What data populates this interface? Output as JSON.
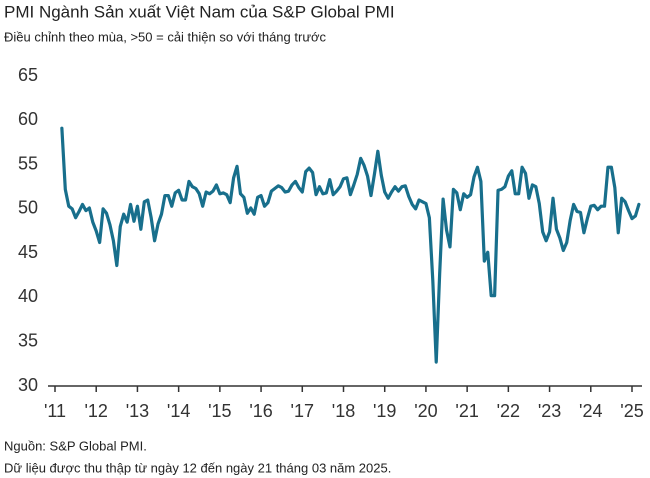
{
  "chart_data": {
    "type": "line",
    "title": "PMI Ngành Sản xuất Việt Nam của S&P Global PMI",
    "subtitle": "Điều chỉnh theo mùa, >50 = cải thiện so với tháng trước",
    "notes": [
      "Nguồn: S&P Global PMI.",
      "Dữ liệu được thu thập từ ngày 12 đến ngày 21 tháng 03 năm 2025."
    ],
    "color": "#186f8c",
    "ylim": [
      30,
      65
    ],
    "yticks": [
      30,
      35,
      40,
      45,
      50,
      55,
      60,
      65
    ],
    "grid": false,
    "categories": [
      "'11",
      null,
      null,
      null,
      null,
      null,
      null,
      null,
      null,
      null,
      null,
      null,
      "'12",
      null,
      null,
      null,
      null,
      null,
      null,
      null,
      null,
      null,
      null,
      null,
      "'13",
      null,
      null,
      null,
      null,
      null,
      null,
      null,
      null,
      null,
      null,
      null,
      "'14",
      null,
      null,
      null,
      null,
      null,
      null,
      null,
      null,
      null,
      null,
      null,
      "'15",
      null,
      null,
      null,
      null,
      null,
      null,
      null,
      null,
      null,
      null,
      null,
      "'16",
      null,
      null,
      null,
      null,
      null,
      null,
      null,
      null,
      null,
      null,
      null,
      "'17",
      null,
      null,
      null,
      null,
      null,
      null,
      null,
      null,
      null,
      null,
      null,
      "'18",
      null,
      null,
      null,
      null,
      null,
      null,
      null,
      null,
      null,
      null,
      null,
      "'19",
      null,
      null,
      null,
      null,
      null,
      null,
      null,
      null,
      null,
      null,
      null,
      "'20",
      null,
      null,
      null,
      null,
      null,
      null,
      null,
      null,
      null,
      null,
      null,
      "'21",
      null,
      null,
      null,
      null,
      null,
      null,
      null,
      null,
      null,
      null,
      null,
      "'22",
      null,
      null,
      null,
      null,
      null,
      null,
      null,
      null,
      null,
      null,
      null,
      "'23",
      null,
      null,
      null,
      null,
      null,
      null,
      null,
      null,
      null,
      null,
      null,
      "'24",
      null,
      null,
      null,
      null,
      null,
      null,
      null,
      null,
      null,
      null,
      null,
      "'25",
      null,
      null
    ],
    "values": [
      null,
      null,
      59.1,
      52.2,
      50.3,
      50.0,
      49.0,
      49.7,
      50.5,
      49.8,
      50.1,
      48.5,
      47.5,
      46.2,
      50.0,
      49.5,
      48.2,
      46.4,
      43.6,
      48.0,
      49.4,
      48.5,
      50.5,
      48.6,
      50.3,
      47.7,
      50.8,
      51.0,
      49.0,
      46.4,
      48.3,
      49.4,
      51.5,
      51.5,
      50.3,
      51.8,
      52.1,
      51.0,
      51.0,
      53.1,
      52.5,
      52.3,
      51.7,
      50.3,
      51.9,
      51.7,
      52.0,
      52.7,
      51.7,
      51.8,
      51.6,
      50.7,
      53.5,
      54.8,
      51.7,
      51.3,
      49.5,
      50.1,
      49.4,
      51.3,
      51.5,
      50.3,
      50.7,
      52.0,
      52.3,
      52.6,
      52.4,
      51.9,
      52.0,
      52.7,
      53.1,
      52.4,
      51.9,
      54.2,
      54.6,
      54.1,
      51.6,
      52.5,
      51.7,
      51.8,
      53.3,
      51.6,
      52.0,
      52.5,
      53.4,
      53.5,
      51.6,
      52.7,
      53.9,
      55.7,
      54.9,
      53.7,
      51.5,
      53.9,
      56.5,
      53.8,
      51.9,
      51.2,
      51.9,
      52.5,
      52.0,
      52.5,
      52.6,
      51.4,
      50.5,
      50.0,
      51.0,
      50.8,
      50.6,
      49.0,
      41.9,
      32.7,
      42.7,
      51.1,
      47.6,
      45.7,
      52.2,
      51.8,
      49.9,
      51.7,
      51.3,
      51.6,
      53.6,
      54.7,
      53.1,
      44.1,
      45.1,
      40.2,
      40.2,
      52.1,
      52.2,
      52.5,
      53.7,
      54.3,
      51.7,
      51.7,
      54.7,
      54.0,
      51.2,
      52.7,
      52.5,
      50.6,
      47.4,
      46.4,
      47.4,
      51.2,
      47.7,
      46.7,
      45.3,
      46.2,
      48.7,
      50.5,
      49.7,
      49.6,
      47.3,
      48.9,
      50.3,
      50.4,
      49.9,
      50.3,
      50.3,
      54.7,
      54.7,
      52.4,
      47.3,
      51.2,
      50.8,
      49.8,
      48.9,
      49.2,
      50.5
    ]
  }
}
